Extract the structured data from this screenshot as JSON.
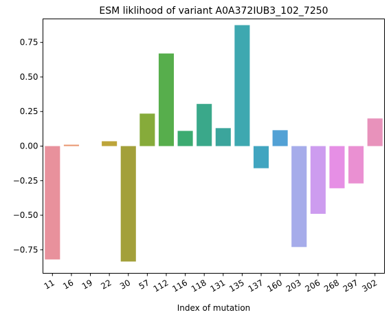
{
  "chart_data": {
    "type": "bar",
    "title": "ESM liklihood of variant A0A372IUB3_102_7250",
    "xlabel": "Index of mutation",
    "ylabel": "",
    "categories": [
      "11",
      "16",
      "19",
      "22",
      "30",
      "57",
      "112",
      "116",
      "118",
      "131",
      "135",
      "137",
      "160",
      "203",
      "206",
      "268",
      "297",
      "302"
    ],
    "values": [
      -0.82,
      0.01,
      0.0,
      0.035,
      -0.835,
      0.235,
      0.67,
      0.11,
      0.305,
      0.13,
      0.875,
      -0.16,
      0.115,
      -0.73,
      -0.49,
      -0.305,
      -0.27,
      0.2
    ],
    "colors": [
      "#e8919c",
      "#e8956e",
      "#d29c3e",
      "#bda53a",
      "#a3a03a",
      "#86ab3a",
      "#57ae4c",
      "#3cab71",
      "#3aa88a",
      "#3ba59c",
      "#3ea8b0",
      "#41a5c0",
      "#52a1d5",
      "#a6acea",
      "#cd9cef",
      "#e68fe5",
      "#ea90d2",
      "#e892bb"
    ],
    "ylim": [
      -0.92,
      0.92
    ],
    "yticks": [
      -0.75,
      -0.5,
      -0.25,
      0.0,
      0.25,
      0.5,
      0.75
    ],
    "ytick_labels": [
      "−0.75",
      "−0.50",
      "−0.25",
      "0.00",
      "0.25",
      "0.50",
      "0.75"
    ],
    "grid": false,
    "legend": "none"
  }
}
